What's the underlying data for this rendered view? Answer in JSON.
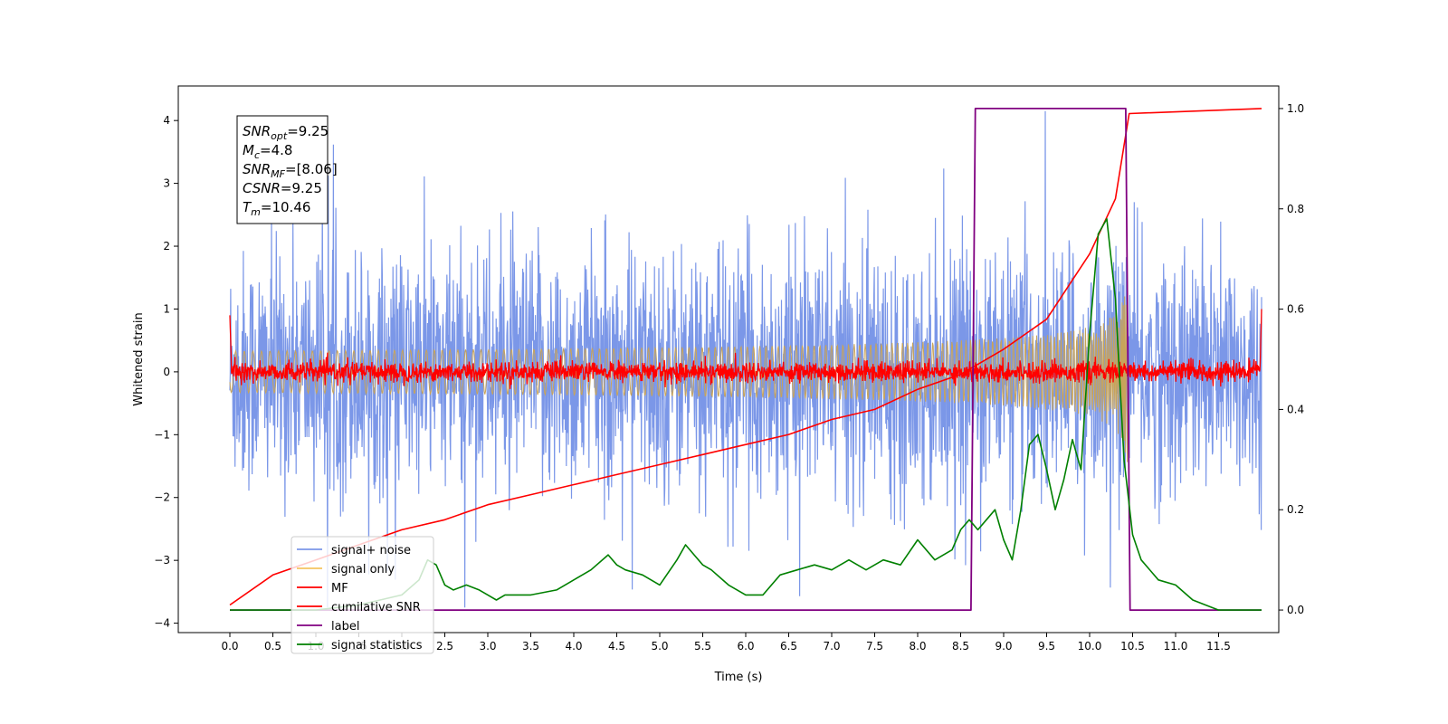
{
  "chart_data": {
    "type": "line",
    "title": "",
    "xlabel": "Time (s)",
    "ylabel": "Whitened strain",
    "xlim": [
      -0.6,
      12.2
    ],
    "ylim": [
      -4.15,
      4.55
    ],
    "y2lim": [
      -0.045,
      1.045
    ],
    "grid": false,
    "legend_position": "lower-left",
    "x_ticks": [
      "0.0",
      "0.5",
      "1.0",
      "1.5",
      "2.0",
      "2.5",
      "3.0",
      "3.5",
      "4.0",
      "4.5",
      "5.0",
      "5.5",
      "6.0",
      "6.5",
      "7.0",
      "7.5",
      "8.0",
      "8.5",
      "9.0",
      "9.5",
      "10.0",
      "10.5",
      "11.0",
      "11.5"
    ],
    "y_ticks": [
      "4",
      "3",
      "2",
      "1",
      "0",
      "−1",
      "−2",
      "−3",
      "−4"
    ],
    "y2_ticks": [
      "1.0",
      "0.8",
      "0.6",
      "0.4",
      "0.2",
      "0.0"
    ],
    "annotation": {
      "lines": [
        {
          "main": "SNR",
          "sub": "opt",
          "rest": "=9.25"
        },
        {
          "main": "M",
          "sub": "c",
          "rest": "=4.8"
        },
        {
          "main": "SNR",
          "sub": "MF",
          "rest": "=[8.06]"
        },
        {
          "main": "CSNR",
          "sub": "",
          "rest": "=9.25"
        },
        {
          "main": "T",
          "sub": "m",
          "rest": "=10.46"
        }
      ]
    },
    "series": [
      {
        "name": "signal+ noise",
        "color": "#7b97e8",
        "axis": "left",
        "kind": "noise",
        "x_range": [
          0.0,
          12.0
        ],
        "envelope": [
          -3.75,
          4.15
        ],
        "typical_std": 1.0
      },
      {
        "name": "signal only",
        "color": "#f5c560",
        "axis": "left",
        "kind": "chirp",
        "x_range": [
          0.0,
          10.46
        ],
        "amplitude_end": 0.6
      },
      {
        "name": "MF",
        "color": "#ff0000",
        "axis": "left",
        "kind": "noise",
        "x_range": [
          0.0,
          12.0
        ],
        "typical_std": 0.08
      },
      {
        "name": "cumilative SNR",
        "color": "#ff0000",
        "axis": "right",
        "x": [
          0.0,
          0.5,
          1.0,
          1.5,
          2.0,
          2.5,
          3.0,
          3.5,
          4.0,
          4.5,
          5.0,
          5.5,
          6.0,
          6.5,
          7.0,
          7.5,
          8.0,
          8.5,
          9.0,
          9.5,
          10.0,
          10.3,
          10.46,
          12.0
        ],
        "y": [
          0.01,
          0.07,
          0.1,
          0.13,
          0.16,
          0.18,
          0.21,
          0.23,
          0.25,
          0.27,
          0.29,
          0.31,
          0.33,
          0.35,
          0.38,
          0.4,
          0.44,
          0.47,
          0.52,
          0.58,
          0.71,
          0.82,
          0.99,
          1.0
        ]
      },
      {
        "name": "label",
        "color": "#800080",
        "axis": "right",
        "x": [
          0.0,
          8.62,
          8.67,
          10.42,
          10.47,
          12.0
        ],
        "y": [
          0.0,
          0.0,
          1.0,
          1.0,
          0.0,
          0.0
        ]
      },
      {
        "name": "signal statistics",
        "color": "#008000",
        "axis": "right",
        "x": [
          0.0,
          0.5,
          1.0,
          1.5,
          2.0,
          2.2,
          2.3,
          2.4,
          2.5,
          2.6,
          2.75,
          2.9,
          3.0,
          3.1,
          3.2,
          3.5,
          3.8,
          4.0,
          4.2,
          4.4,
          4.5,
          4.6,
          4.8,
          5.0,
          5.2,
          5.3,
          5.4,
          5.5,
          5.6,
          5.8,
          6.0,
          6.2,
          6.4,
          6.6,
          6.8,
          7.0,
          7.2,
          7.4,
          7.6,
          7.8,
          8.0,
          8.2,
          8.4,
          8.5,
          8.6,
          8.7,
          8.8,
          8.9,
          9.0,
          9.1,
          9.2,
          9.3,
          9.4,
          9.5,
          9.6,
          9.7,
          9.8,
          9.9,
          10.0,
          10.1,
          10.2,
          10.3,
          10.4,
          10.5,
          10.6,
          10.8,
          11.0,
          11.2,
          11.5,
          11.8,
          12.0
        ],
        "y": [
          0.0,
          0.0,
          0.0,
          0.01,
          0.03,
          0.06,
          0.1,
          0.09,
          0.05,
          0.04,
          0.05,
          0.04,
          0.03,
          0.02,
          0.03,
          0.03,
          0.04,
          0.06,
          0.08,
          0.11,
          0.09,
          0.08,
          0.07,
          0.05,
          0.1,
          0.13,
          0.11,
          0.09,
          0.08,
          0.05,
          0.03,
          0.03,
          0.07,
          0.08,
          0.09,
          0.08,
          0.1,
          0.08,
          0.1,
          0.09,
          0.14,
          0.1,
          0.12,
          0.16,
          0.18,
          0.16,
          0.18,
          0.2,
          0.14,
          0.1,
          0.2,
          0.33,
          0.35,
          0.28,
          0.2,
          0.26,
          0.34,
          0.28,
          0.55,
          0.75,
          0.78,
          0.62,
          0.3,
          0.15,
          0.1,
          0.06,
          0.05,
          0.02,
          0.0,
          0.0,
          0.0
        ]
      }
    ]
  }
}
